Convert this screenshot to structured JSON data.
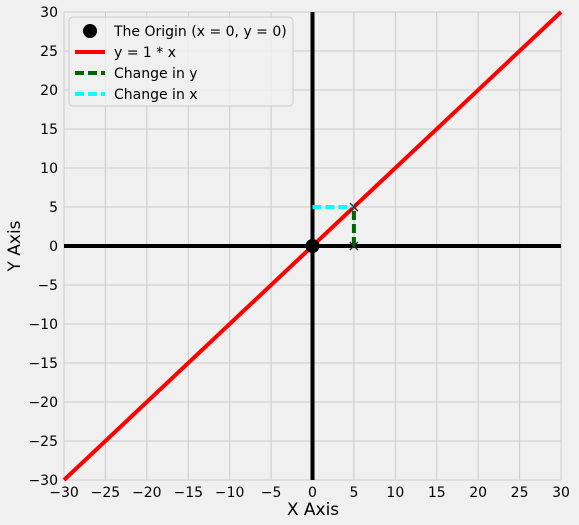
{
  "chart_data": {
    "type": "line",
    "xlabel": "X Axis",
    "ylabel": "Y Axis",
    "xlim": [
      -30,
      30
    ],
    "ylim": [
      -30,
      30
    ],
    "xticks": [
      -30,
      -25,
      -20,
      -15,
      -10,
      -5,
      0,
      5,
      10,
      15,
      20,
      25,
      30
    ],
    "yticks": [
      -30,
      -25,
      -20,
      -15,
      -10,
      -5,
      0,
      5,
      10,
      15,
      20,
      25,
      30
    ],
    "grid": true,
    "legend_position": "top-left",
    "series": [
      {
        "name": "The Origin (x = 0, y = 0)",
        "kind": "marker",
        "color": "#000000",
        "points": [
          [
            0,
            0
          ]
        ]
      },
      {
        "name": "y = 1 * x",
        "kind": "line",
        "color": "#ff0000",
        "points": [
          [
            -30,
            -30
          ],
          [
            30,
            30
          ]
        ]
      },
      {
        "name": "Change in y",
        "kind": "dashed",
        "color": "#006400",
        "points": [
          [
            5,
            0
          ],
          [
            5,
            5
          ]
        ]
      },
      {
        "name": "Change in x",
        "kind": "dashed",
        "color": "#00ffff",
        "points": [
          [
            0,
            5
          ],
          [
            5,
            5
          ]
        ]
      }
    ],
    "reference_lines": {
      "x0_color": "#000000",
      "y0_color": "#000000"
    },
    "point_markers": [
      [
        5,
        0
      ],
      [
        5,
        5
      ]
    ],
    "colors": {
      "background": "#f0f0f0",
      "grid": "#cbcbcb",
      "legend_bg": "#f0f0f0",
      "legend_border": "#cccccc"
    }
  }
}
